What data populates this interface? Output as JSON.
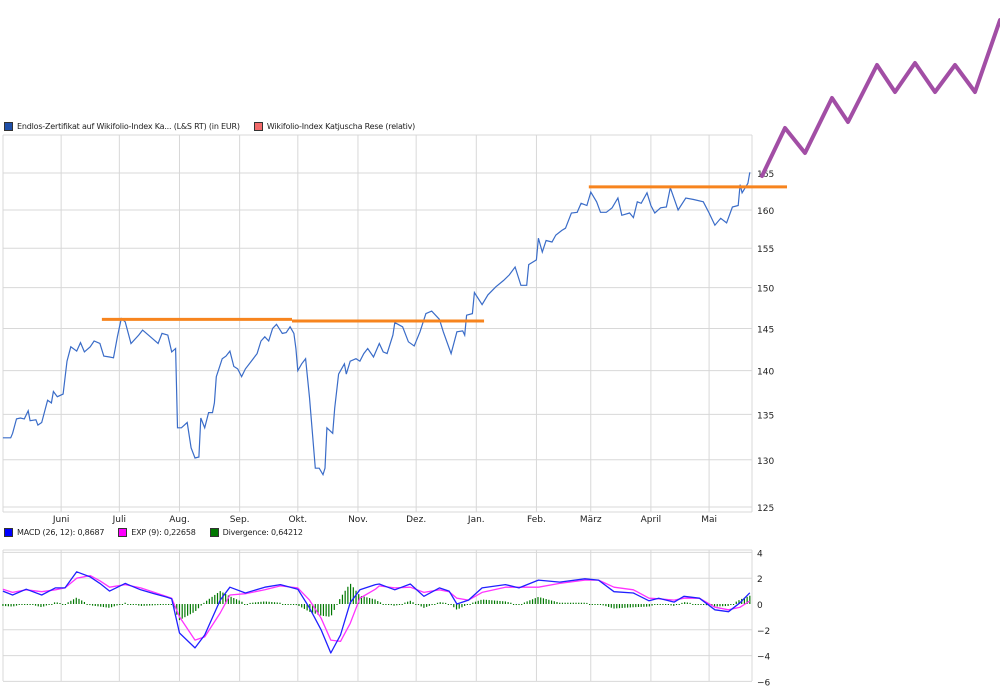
{
  "chart_data": [
    {
      "type": "line",
      "y_scale": "log",
      "ylim": [
        124,
        167
      ],
      "y_ticks": [
        125,
        130,
        135,
        140,
        145,
        150,
        155,
        160,
        165
      ],
      "y_tick_labels": [
        "125",
        "130",
        "135",
        "140",
        "145",
        "150",
        "155",
        "160",
        "165"
      ],
      "x_ticks": [
        "01.06.",
        "01.07.",
        "01.08.",
        "01.09.",
        "01.10.",
        "01.11.",
        "01.12.",
        "01.01.",
        "01.02.",
        "01.03.",
        "01.04.",
        "01.05."
      ],
      "x_tick_labels": [
        "Juni",
        "Juli",
        "Aug.",
        "Sep.",
        "Okt.",
        "Nov.",
        "Dez.",
        "Jan.",
        "Feb.",
        "März",
        "April",
        "Mai"
      ],
      "x_start": "01.05.",
      "grid": true,
      "legend_position": "top-left",
      "legend": [
        {
          "label": "Endlos-Zertifikat auf Wikifolio-Index Ka... (L&S RT) (in EUR)",
          "color": "#1f4fa8"
        },
        {
          "label": "Wikifolio-Index Katjuscha Rese (relativ)",
          "color": "#f26a6a"
        }
      ],
      "series": [
        {
          "name": "Endlos-Zertifikat auf Wikifolio-Index Ka... (L&S RT) (in EUR)",
          "color": "#3a6cc8",
          "points": [
            [
              "02.05.",
              132.4
            ],
            [
              "06.05.",
              132.4
            ],
            [
              "07.05.",
              132.9
            ],
            [
              "09.05.",
              134.5
            ],
            [
              "11.05.",
              134.6
            ],
            [
              "13.05.",
              134.5
            ],
            [
              "15.05.",
              135.4
            ],
            [
              "16.05.",
              134.3
            ],
            [
              "19.05.",
              134.4
            ],
            [
              "20.05.",
              133.8
            ],
            [
              "22.05.",
              134.1
            ],
            [
              "25.05.",
              136.6
            ],
            [
              "27.05.",
              136.3
            ],
            [
              "28.05.",
              137.6
            ],
            [
              "30.05.",
              137.0
            ],
            [
              "02.06.",
              137.3
            ],
            [
              "04.06.",
              141.1
            ],
            [
              "06.06.",
              142.8
            ],
            [
              "09.06.",
              142.3
            ],
            [
              "11.06.",
              143.3
            ],
            [
              "13.06.",
              142.2
            ],
            [
              "16.06.",
              142.8
            ],
            [
              "18.06.",
              143.5
            ],
            [
              "21.06.",
              143.2
            ],
            [
              "23.06.",
              141.7
            ],
            [
              "26.06.",
              141.6
            ],
            [
              "28.06.",
              141.5
            ],
            [
              "30.06.",
              144.0
            ],
            [
              "02.07.",
              146.2
            ],
            [
              "04.07.",
              145.8
            ],
            [
              "07.07.",
              143.2
            ],
            [
              "11.07.",
              144.2
            ],
            [
              "13.07.",
              144.8
            ],
            [
              "16.07.",
              144.2
            ],
            [
              "18.07.",
              143.8
            ],
            [
              "21.07.",
              143.2
            ],
            [
              "23.07.",
              144.4
            ],
            [
              "26.07.",
              144.2
            ],
            [
              "28.07.",
              142.2
            ],
            [
              "30.07.",
              142.6
            ],
            [
              "31.07.",
              133.5
            ],
            [
              "02.08.",
              133.5
            ],
            [
              "05.08.",
              134.1
            ],
            [
              "07.08.",
              131.3
            ],
            [
              "09.08.",
              130.2
            ],
            [
              "11.08.",
              130.3
            ],
            [
              "12.08.",
              134.6
            ],
            [
              "14.08.",
              133.5
            ],
            [
              "16.08.",
              135.2
            ],
            [
              "18.08.",
              135.2
            ],
            [
              "19.08.",
              136.3
            ],
            [
              "20.08.",
              139.3
            ],
            [
              "21.08.",
              140.0
            ],
            [
              "23.08.",
              141.4
            ],
            [
              "25.08.",
              141.7
            ],
            [
              "27.08.",
              142.3
            ],
            [
              "29.08.",
              140.5
            ],
            [
              "31.08.",
              140.2
            ],
            [
              "02.09.",
              139.3
            ],
            [
              "04.09.",
              140.2
            ],
            [
              "07.09.",
              141.1
            ],
            [
              "10.09.",
              142.0
            ],
            [
              "12.09.",
              143.5
            ],
            [
              "14.09.",
              144.0
            ],
            [
              "16.09.",
              143.5
            ],
            [
              "18.09.",
              145.0
            ],
            [
              "20.09.",
              145.5
            ],
            [
              "23.09.",
              144.4
            ],
            [
              "25.09.",
              144.5
            ],
            [
              "27.09.",
              145.2
            ],
            [
              "29.09.",
              144.4
            ],
            [
              "30.09.",
              142.6
            ],
            [
              "01.10.",
              140.0
            ],
            [
              "03.10.",
              140.8
            ],
            [
              "05.10.",
              141.4
            ],
            [
              "07.10.",
              136.9
            ],
            [
              "10.10.",
              129.1
            ],
            [
              "12.10.",
              129.1
            ],
            [
              "14.10.",
              128.4
            ],
            [
              "15.10.",
              129.1
            ],
            [
              "16.10.",
              133.5
            ],
            [
              "19.10.",
              132.9
            ],
            [
              "20.10.",
              135.7
            ],
            [
              "22.10.",
              139.6
            ],
            [
              "25.10.",
              140.8
            ],
            [
              "26.10.",
              139.6
            ],
            [
              "28.10.",
              141.1
            ],
            [
              "31.10.",
              141.4
            ],
            [
              "02.11.",
              141.1
            ],
            [
              "04.11.",
              142.0
            ],
            [
              "06.11.",
              142.6
            ],
            [
              "09.11.",
              141.6
            ],
            [
              "12.11.",
              143.2
            ],
            [
              "14.11.",
              142.2
            ],
            [
              "16.11.",
              142.0
            ],
            [
              "19.11.",
              144.2
            ],
            [
              "20.11.",
              145.7
            ],
            [
              "24.11.",
              145.2
            ],
            [
              "27.11.",
              143.4
            ],
            [
              "30.11.",
              142.9
            ],
            [
              "03.12.",
              144.6
            ],
            [
              "06.12.",
              146.8
            ],
            [
              "09.12.",
              147.1
            ],
            [
              "13.12.",
              146.1
            ],
            [
              "15.12.",
              144.6
            ],
            [
              "19.12.",
              142.0
            ],
            [
              "22.12.",
              144.6
            ],
            [
              "25.12.",
              144.7
            ],
            [
              "26.12.",
              144.2
            ],
            [
              "27.12.",
              146.6
            ],
            [
              "30.12.",
              146.8
            ],
            [
              "31.12.",
              149.4
            ],
            [
              "04.01.",
              147.9
            ],
            [
              "07.01.",
              149.1
            ],
            [
              "11.01.",
              150.1
            ],
            [
              "15.01.",
              150.9
            ],
            [
              "18.01.",
              151.6
            ],
            [
              "21.01.",
              152.6
            ],
            [
              "24.01.",
              150.3
            ],
            [
              "27.01.",
              150.3
            ],
            [
              "28.01.",
              152.9
            ],
            [
              "01.02.",
              153.5
            ],
            [
              "02.02.",
              156.3
            ],
            [
              "04.02.",
              154.5
            ],
            [
              "06.02.",
              156.0
            ],
            [
              "09.02.",
              155.8
            ],
            [
              "11.02.",
              156.7
            ],
            [
              "14.02.",
              157.3
            ],
            [
              "16.02.",
              157.6
            ],
            [
              "19.02.",
              159.6
            ],
            [
              "22.02.",
              159.7
            ],
            [
              "24.02.",
              160.9
            ],
            [
              "27.02.",
              160.6
            ],
            [
              "01.03.",
              162.4
            ],
            [
              "04.03.",
              161.1
            ],
            [
              "06.03.",
              159.7
            ],
            [
              "09.03.",
              159.7
            ],
            [
              "12.03.",
              160.3
            ],
            [
              "15.03.",
              161.6
            ],
            [
              "17.03.",
              159.3
            ],
            [
              "21.03.",
              159.6
            ],
            [
              "23.03.",
              159.0
            ],
            [
              "25.03.",
              161.1
            ],
            [
              "27.03.",
              160.9
            ],
            [
              "30.03.",
              162.3
            ],
            [
              "01.04.",
              160.6
            ],
            [
              "03.04.",
              159.6
            ],
            [
              "06.04.",
              160.3
            ],
            [
              "09.04.",
              160.4
            ],
            [
              "11.04.",
              163.0
            ],
            [
              "15.04.",
              160.0
            ],
            [
              "19.04.",
              161.6
            ],
            [
              "23.04.",
              161.4
            ],
            [
              "28.04.",
              161.1
            ],
            [
              "01.05.",
              159.6
            ],
            [
              "04.05.",
              158.0
            ],
            [
              "07.05.",
              158.9
            ],
            [
              "10.05.",
              158.3
            ],
            [
              "13.05.",
              160.4
            ],
            [
              "16.05.",
              160.6
            ],
            [
              "17.05.",
              163.4
            ],
            [
              "18.05.",
              162.3
            ],
            [
              "21.05.",
              163.6
            ],
            [
              "22.05.",
              165.1
            ]
          ]
        }
      ],
      "annotations": [
        {
          "type": "horizontal-line",
          "color": "#f7841e",
          "from": "22.06.",
          "to": "28.09.",
          "value": 146.1
        },
        {
          "type": "horizontal-line",
          "color": "#f7841e",
          "from": "28.09.",
          "to": "05.01.",
          "value": 145.9
        },
        {
          "type": "horizontal-line",
          "color": "#f7841e",
          "from": "28.02.",
          "to": "22.05.",
          "value": 163.1,
          "extends_past_axis": true
        },
        {
          "type": "hand-drawn-zigzag-arrow",
          "color": "#a24ea5",
          "direction": "up"
        }
      ]
    },
    {
      "type": "line",
      "ylim": [
        -6,
        4
      ],
      "y_ticks": [
        4,
        2,
        0,
        -2,
        -4,
        -6
      ],
      "y_tick_labels": [
        "4",
        "2",
        "0",
        "−2",
        "−4",
        "−6"
      ],
      "grid": true,
      "legend_position": "top-left",
      "legend": [
        {
          "label": "MACD (26, 12): 0,8687",
          "color": "#0000ff"
        },
        {
          "label": "EXP (9): 0,22658",
          "color": "#ff00ff"
        },
        {
          "label": "Divergence: 0,64212",
          "color": "#007700"
        }
      ],
      "dates": [
        "02.05.",
        "07.05.",
        "14.05.",
        "22.05.",
        "29.05.",
        "03.06.",
        "09.06.",
        "16.06.",
        "21.06.",
        "26.06.",
        "04.07.",
        "12.07.",
        "19.07.",
        "25.07.",
        "28.07.",
        "01.08.",
        "09.08.",
        "14.08.",
        "22.08.",
        "27.08.",
        "04.09.",
        "14.09.",
        "22.09.",
        "01.10.",
        "07.10.",
        "13.10.",
        "18.10.",
        "23.10.",
        "28.10.",
        "02.11.",
        "10.11.",
        "12.11.",
        "20.11.",
        "28.11.",
        "05.12.",
        "13.12.",
        "18.12.",
        "22.12.",
        "28.12.",
        "04.01.",
        "16.01.",
        "23.01.",
        "02.02.",
        "13.02.",
        "26.02.",
        "05.03.",
        "13.03.",
        "23.03.",
        "31.03.",
        "05.04.",
        "13.04.",
        "18.04.",
        "26.04.",
        "04.05.",
        "11.05.",
        "17.05.",
        "22.05."
      ],
      "series": [
        {
          "name": "MACD (26, 12)",
          "color": "#2020ff",
          "values": [
            1.0,
            0.7,
            1.15,
            0.7,
            1.25,
            1.25,
            2.5,
            2.1,
            1.6,
            1.0,
            1.6,
            1.1,
            0.8,
            0.55,
            0.4,
            -2.25,
            -3.4,
            -2.4,
            0.3,
            1.3,
            0.85,
            1.3,
            1.5,
            1.15,
            -0.3,
            -2.0,
            -3.8,
            -2.4,
            0.1,
            1.1,
            1.5,
            1.55,
            1.1,
            1.55,
            0.6,
            1.25,
            1.0,
            0.0,
            0.3,
            1.25,
            1.5,
            1.25,
            1.85,
            1.7,
            1.95,
            1.85,
            0.95,
            0.85,
            0.25,
            0.45,
            0.15,
            0.6,
            0.45,
            -0.45,
            -0.6,
            0.1,
            0.87
          ]
        },
        {
          "name": "EXP (9)",
          "color": "#ff33ff",
          "values": [
            1.15,
            0.9,
            1.1,
            0.95,
            1.1,
            1.25,
            2.0,
            2.2,
            1.8,
            1.3,
            1.5,
            1.25,
            0.9,
            0.6,
            0.45,
            -1.0,
            -2.8,
            -2.55,
            -0.7,
            0.7,
            0.8,
            1.1,
            1.4,
            1.25,
            0.3,
            -1.1,
            -2.8,
            -2.9,
            -1.5,
            0.45,
            1.15,
            1.4,
            1.25,
            1.3,
            0.9,
            1.1,
            0.95,
            0.45,
            0.3,
            0.9,
            1.3,
            1.3,
            1.3,
            1.6,
            1.85,
            1.85,
            1.3,
            1.1,
            0.45,
            0.4,
            0.3,
            0.45,
            0.45,
            -0.25,
            -0.45,
            -0.25,
            0.23
          ]
        },
        {
          "name": "Divergence",
          "color": "#007700",
          "type": "bar",
          "values": [
            -0.15,
            -0.2,
            0.05,
            -0.25,
            0.15,
            0.0,
            0.5,
            -0.1,
            -0.2,
            -0.3,
            0.1,
            -0.15,
            -0.1,
            -0.05,
            -0.05,
            -1.25,
            -0.6,
            0.15,
            1.0,
            0.6,
            0.05,
            0.2,
            0.1,
            -0.1,
            -0.6,
            -0.9,
            -1.0,
            0.5,
            1.6,
            0.65,
            0.35,
            0.15,
            -0.15,
            0.25,
            -0.3,
            0.15,
            0.05,
            -0.45,
            0.0,
            0.35,
            0.2,
            -0.05,
            0.55,
            0.1,
            0.1,
            0.0,
            -0.35,
            -0.25,
            -0.2,
            0.05,
            -0.15,
            0.15,
            0.0,
            -0.2,
            -0.15,
            0.35,
            0.64
          ]
        }
      ]
    }
  ]
}
